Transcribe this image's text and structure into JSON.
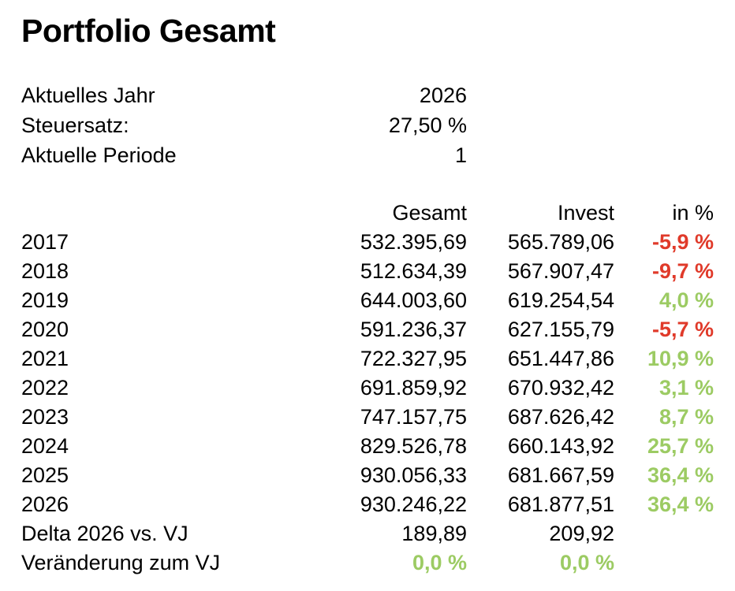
{
  "page": {
    "title": "Portfolio Gesamt"
  },
  "info": {
    "rows": [
      {
        "label": "Aktuelles Jahr",
        "value": "2026"
      },
      {
        "label": "Steuersatz:",
        "value": "27,50 %"
      },
      {
        "label": "Aktuelle Periode",
        "value": "1"
      }
    ]
  },
  "table": {
    "headers": {
      "year": "",
      "gesamt": "Gesamt",
      "invest": "Invest",
      "pct": "in %"
    },
    "rows": [
      {
        "year": "2017",
        "gesamt": "532.395,69",
        "invest": "565.789,06",
        "pct": "-5,9 %",
        "trend": "negative"
      },
      {
        "year": "2018",
        "gesamt": "512.634,39",
        "invest": "567.907,47",
        "pct": "-9,7 %",
        "trend": "negative"
      },
      {
        "year": "2019",
        "gesamt": "644.003,60",
        "invest": "619.254,54",
        "pct": "4,0 %",
        "trend": "positive"
      },
      {
        "year": "2020",
        "gesamt": "591.236,37",
        "invest": "627.155,79",
        "pct": "-5,7 %",
        "trend": "negative"
      },
      {
        "year": "2021",
        "gesamt": "722.327,95",
        "invest": "651.447,86",
        "pct": "10,9 %",
        "trend": "positive"
      },
      {
        "year": "2022",
        "gesamt": "691.859,92",
        "invest": "670.932,42",
        "pct": "3,1 %",
        "trend": "positive"
      },
      {
        "year": "2023",
        "gesamt": "747.157,75",
        "invest": "687.626,42",
        "pct": "8,7 %",
        "trend": "positive"
      },
      {
        "year": "2024",
        "gesamt": "829.526,78",
        "invest": "660.143,92",
        "pct": "25,7 %",
        "trend": "positive"
      },
      {
        "year": "2025",
        "gesamt": "930.056,33",
        "invest": "681.667,59",
        "pct": "36,4 %",
        "trend": "positive"
      },
      {
        "year": "2026",
        "gesamt": "930.246,22",
        "invest": "681.877,51",
        "pct": "36,4 %",
        "trend": "positive"
      }
    ],
    "delta_row": {
      "label": "Delta 2026 vs. VJ",
      "gesamt": "189,89",
      "invest": "209,92",
      "pct": ""
    },
    "change_row": {
      "label": "Veränderung zum VJ",
      "gesamt": "0,0 %",
      "invest": "0,0 %",
      "pct": "",
      "trend": "positive"
    }
  },
  "colors": {
    "text": "#000000",
    "background": "#FFFFFF",
    "positive": "#9CCB63",
    "negative": "#E03A2A"
  }
}
